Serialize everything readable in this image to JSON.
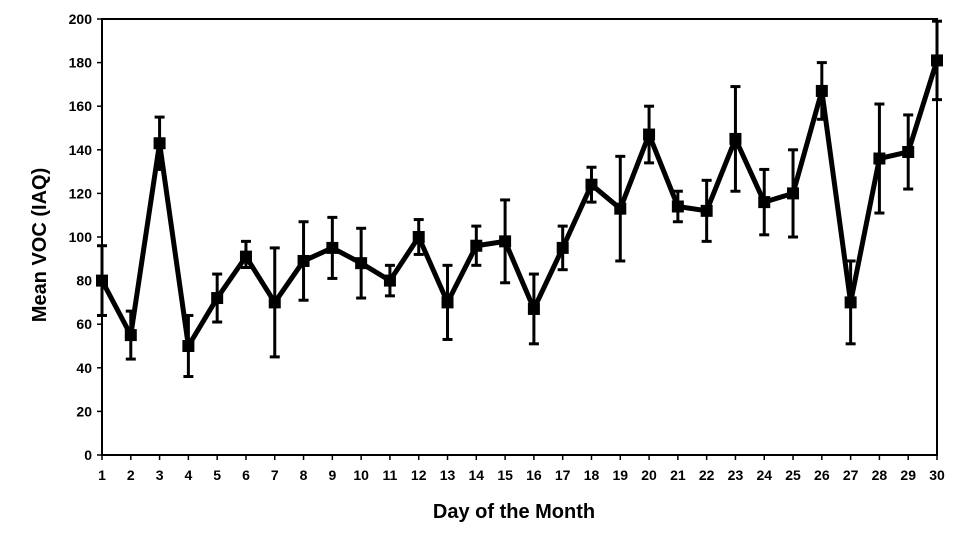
{
  "chart_data": {
    "type": "line",
    "title": "",
    "xlabel": "Day of the Month",
    "ylabel": "Mean VOC (IAQ)",
    "ylim": [
      0,
      200
    ],
    "yticks": [
      0,
      20,
      40,
      60,
      80,
      100,
      120,
      140,
      160,
      180,
      200
    ],
    "xlim": [
      1,
      30
    ],
    "grid": false,
    "legend": "none",
    "line_color": "#000000",
    "marker": "square",
    "x": [
      1,
      2,
      3,
      4,
      5,
      6,
      7,
      8,
      9,
      10,
      11,
      12,
      13,
      14,
      15,
      16,
      17,
      18,
      19,
      20,
      21,
      22,
      23,
      24,
      25,
      26,
      27,
      28,
      29,
      30
    ],
    "series": [
      {
        "values": [
          80,
          55,
          143,
          50,
          72,
          91,
          70,
          89,
          95,
          88,
          80,
          100,
          70,
          96,
          98,
          67,
          95,
          124,
          113,
          147,
          114,
          112,
          145,
          116,
          120,
          167,
          70,
          136,
          139,
          181
        ],
        "error_low": [
          64,
          44,
          131,
          36,
          61,
          86,
          45,
          71,
          81,
          72,
          73,
          92,
          53,
          87,
          79,
          51,
          85,
          116,
          89,
          134,
          107,
          98,
          121,
          101,
          100,
          154,
          51,
          111,
          122,
          163
        ],
        "error_high": [
          96,
          66,
          155,
          64,
          83,
          98,
          95,
          107,
          109,
          104,
          87,
          108,
          87,
          105,
          117,
          83,
          105,
          132,
          137,
          160,
          121,
          126,
          169,
          131,
          140,
          180,
          89,
          161,
          156,
          199
        ]
      }
    ]
  }
}
